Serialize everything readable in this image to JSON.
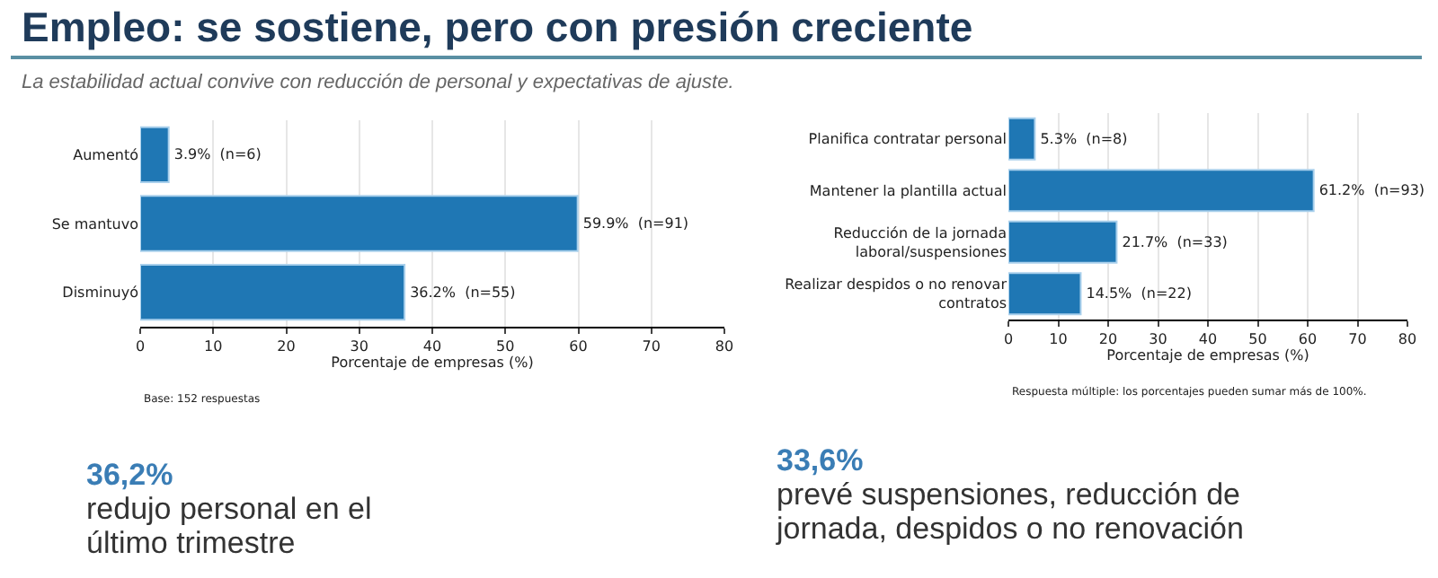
{
  "chart_data": [
    {
      "type": "bar",
      "orientation": "horizontal",
      "title": "Empleo: se sostiene, pero con presión creciente",
      "subtitle": "La estabilidad actual convive con reducción de personal y expectativas de ajuste.",
      "categories": [
        "Aumentó",
        "Se mantuvo",
        "Disminuyó"
      ],
      "values": [
        3.9,
        59.9,
        36.2
      ],
      "value_labels": [
        "3.9%  (n=6)",
        "59.9%  (n=91)",
        "36.2%  (n=55)"
      ],
      "color": "#1f77b4",
      "xlim": [
        0,
        80
      ],
      "xticks": [
        0,
        10,
        20,
        30,
        40,
        50,
        60,
        70,
        80
      ],
      "xlabel": "Porcentaje de empresas (%)",
      "grid": "x",
      "annotations": [
        "Base: 152 respuestas",
        "36,2%",
        "redujo personal en el último trimestre"
      ]
    },
    {
      "type": "bar",
      "orientation": "horizontal",
      "categories": [
        "Planifica contratar personal",
        "Mantener la plantilla actual",
        "Reducción de la jornada laboral/suspensiones",
        "Realizar despidos o no renovar contratos"
      ],
      "values": [
        5.3,
        61.2,
        21.7,
        14.5
      ],
      "value_labels": [
        "5.3%  (n=8)",
        "61.2%  (n=93)",
        "21.7%  (n=33)",
        "14.5%  (n=22)"
      ],
      "color": "#1f77b4",
      "xlim": [
        0,
        80
      ],
      "xticks": [
        0,
        10,
        20,
        30,
        40,
        50,
        60,
        70,
        80
      ],
      "xlabel": "Porcentaje de empresas (%)",
      "grid": "x",
      "annotations": [
        "Respuesta múltiple: los porcentajes pueden sumar más de 100%.",
        "33,6%",
        "prevé suspensiones, reducción de jornada, despidos o no renovación"
      ]
    }
  ]
}
